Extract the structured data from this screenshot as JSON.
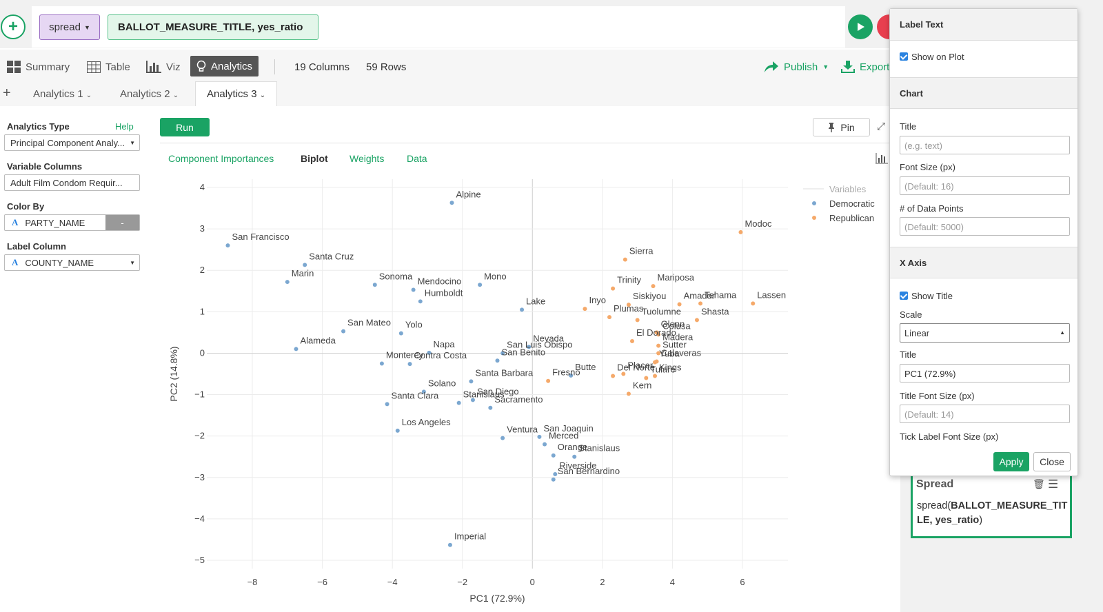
{
  "command": {
    "add_label": "+",
    "verb": "spread",
    "args": "BALLOT_MEASURE_TITLE, yes_ratio"
  },
  "views": {
    "summary": "Summary",
    "table": "Table",
    "viz": "Viz",
    "analytics": "Analytics",
    "columns": "19 Columns",
    "rows": "59 Rows",
    "publish": "Publish",
    "export": "Export"
  },
  "tabs": {
    "add": "+",
    "items": [
      "Analytics 1",
      "Analytics 2",
      "Analytics 3"
    ]
  },
  "sidebar": {
    "analytics_type_label": "Analytics Type",
    "help": "Help",
    "analytics_type_value": "Principal Component Analy...",
    "variable_columns_label": "Variable Columns",
    "variable_columns_value": "Adult Film Condom Requir...",
    "color_by_label": "Color By",
    "color_by_value": "PARTY_NAME",
    "color_by_btn": "-",
    "label_column_label": "Label Column",
    "label_column_value": "COUNTY_NAME",
    "type_glyph": "A"
  },
  "toolbar": {
    "run": "Run",
    "pin": "Pin"
  },
  "subtabs": [
    "Component Importances",
    "Biplot",
    "Weights",
    "Data"
  ],
  "panel": {
    "label_text_header": "Label Text",
    "show_on_plot": "Show on Plot",
    "chart_header": "Chart",
    "title_label": "Title",
    "title_placeholder": "(e.g. text)",
    "font_size_label": "Font Size (px)",
    "font_size_placeholder": "(Default: 16)",
    "points_label": "# of Data Points",
    "points_placeholder": "(Default: 5000)",
    "xaxis_header": "X Axis",
    "show_title": "Show Title",
    "scale_label": "Scale",
    "scale_value": "Linear",
    "xtitle_label": "Title",
    "xtitle_value": "PC1 (72.9%)",
    "title_font_label": "Title Font Size (px)",
    "title_font_placeholder": "(Default: 14)",
    "tick_font_label": "Tick Label Font Size (px)",
    "apply": "Apply",
    "close": "Close"
  },
  "step": {
    "title": "Spread",
    "code_prefix": "spread(",
    "code_args": "BALLOT_MEASURE_TITLE, yes_ratio",
    "code_suffix": ")"
  },
  "colors": {
    "accent": "#1aa364",
    "democratic": "#7ba7d0",
    "republican": "#f5a96a"
  },
  "chart_data": {
    "type": "scatter",
    "xlabel": "PC1 (72.9%)",
    "ylabel": "PC2 (14.8%)",
    "xlim": [
      -9.3,
      7.3
    ],
    "ylim": [
      -5.2,
      4.2
    ],
    "xticks": [
      -8,
      -6,
      -4,
      -2,
      0,
      2,
      4,
      6
    ],
    "yticks": [
      4,
      3,
      2,
      1,
      0,
      -1,
      -2,
      -3,
      -4,
      -5
    ],
    "legend": {
      "title": "Variables",
      "position": "top-right",
      "items": [
        "Democratic",
        "Republican"
      ]
    },
    "series": [
      {
        "name": "Democratic",
        "points": [
          {
            "label": "Alpine",
            "x": -2.3,
            "y": 3.63
          },
          {
            "label": "San Francisco",
            "x": -8.7,
            "y": 2.6
          },
          {
            "label": "Santa Cruz",
            "x": -6.5,
            "y": 2.13
          },
          {
            "label": "Marin",
            "x": -7.0,
            "y": 1.72
          },
          {
            "label": "Sonoma",
            "x": -4.5,
            "y": 1.65
          },
          {
            "label": "Mendocino",
            "x": -3.4,
            "y": 1.53
          },
          {
            "label": "Humboldt",
            "x": -3.2,
            "y": 1.25
          },
          {
            "label": "Mono",
            "x": -1.5,
            "y": 1.65
          },
          {
            "label": "Lake",
            "x": -0.3,
            "y": 1.05
          },
          {
            "label": "San Mateo",
            "x": -5.4,
            "y": 0.53
          },
          {
            "label": "Yolo",
            "x": -3.75,
            "y": 0.48
          },
          {
            "label": "Alameda",
            "x": -6.75,
            "y": 0.1
          },
          {
            "label": "Napa",
            "x": -2.95,
            "y": 0.01
          },
          {
            "label": "Monterey",
            "x": -4.3,
            "y": -0.25
          },
          {
            "label": "Contra Costa",
            "x": -3.5,
            "y": -0.26
          },
          {
            "label": "Nevada",
            "x": -0.1,
            "y": 0.15
          },
          {
            "label": "San Luis Obispo",
            "x": -0.85,
            "y": 0.0
          },
          {
            "label": "San Benito",
            "x": -1.0,
            "y": -0.18
          },
          {
            "label": "Solano",
            "x": -3.1,
            "y": -0.93
          },
          {
            "label": "Santa Barbara",
            "x": -1.75,
            "y": -0.68
          },
          {
            "label": "Santa Clara",
            "x": -4.15,
            "y": -1.23
          },
          {
            "label": "Stanislaus",
            "x": -2.1,
            "y": -1.2
          },
          {
            "label": "San Diego",
            "x": -1.7,
            "y": -1.13
          },
          {
            "label": "Sacramento",
            "x": -1.2,
            "y": -1.32
          },
          {
            "label": "Butte",
            "x": 1.1,
            "y": -0.54
          },
          {
            "label": "Los Angeles",
            "x": -3.85,
            "y": -1.87
          },
          {
            "label": "Ventura",
            "x": -0.85,
            "y": -2.05
          },
          {
            "label": "San Joaquin",
            "x": 0.2,
            "y": -2.02
          },
          {
            "label": "Merced",
            "x": 0.35,
            "y": -2.2
          },
          {
            "label": "Orange",
            "x": 0.6,
            "y": -2.47
          },
          {
            "label": "Stanislaus",
            "x": 1.2,
            "y": -2.5
          },
          {
            "label": "Riverside",
            "x": 0.65,
            "y": -2.92
          },
          {
            "label": "San Bernardino",
            "x": 0.6,
            "y": -3.05
          },
          {
            "label": "Imperial",
            "x": -2.35,
            "y": -4.63
          }
        ]
      },
      {
        "name": "Republican",
        "points": [
          {
            "label": "Modoc",
            "x": 5.95,
            "y": 2.92
          },
          {
            "label": "Sierra",
            "x": 2.65,
            "y": 2.26
          },
          {
            "label": "Trinity",
            "x": 2.3,
            "y": 1.56
          },
          {
            "label": "Mariposa",
            "x": 3.45,
            "y": 1.62
          },
          {
            "label": "Inyo",
            "x": 1.5,
            "y": 1.07
          },
          {
            "label": "Siskiyou",
            "x": 2.75,
            "y": 1.17
          },
          {
            "label": "Plumas",
            "x": 2.2,
            "y": 0.87
          },
          {
            "label": "Amador",
            "x": 4.2,
            "y": 1.18
          },
          {
            "label": "Tehama",
            "x": 4.8,
            "y": 1.2
          },
          {
            "label": "Lassen",
            "x": 6.3,
            "y": 1.2
          },
          {
            "label": "Tuolumne",
            "x": 3.0,
            "y": 0.8
          },
          {
            "label": "Shasta",
            "x": 4.7,
            "y": 0.8
          },
          {
            "label": "Colusa",
            "x": 3.6,
            "y": 0.45
          },
          {
            "label": "Glenn",
            "x": 3.55,
            "y": 0.5
          },
          {
            "label": "El Dorado",
            "x": 2.85,
            "y": 0.29
          },
          {
            "label": "Madera",
            "x": 3.6,
            "y": 0.18
          },
          {
            "label": "Sutter",
            "x": 3.6,
            "y": 0.0
          },
          {
            "label": "Calaveras",
            "x": 3.55,
            "y": -0.2
          },
          {
            "label": "Placer",
            "x": 2.6,
            "y": -0.5
          },
          {
            "label": "Del Norte",
            "x": 2.3,
            "y": -0.55
          },
          {
            "label": "Yuba",
            "x": 3.5,
            "y": -0.22
          },
          {
            "label": "Tulare",
            "x": 3.25,
            "y": -0.6
          },
          {
            "label": "Kings",
            "x": 3.5,
            "y": -0.55
          },
          {
            "label": "Fresno",
            "x": 0.45,
            "y": -0.67
          },
          {
            "label": "Kern",
            "x": 2.75,
            "y": -0.98
          }
        ]
      }
    ]
  }
}
